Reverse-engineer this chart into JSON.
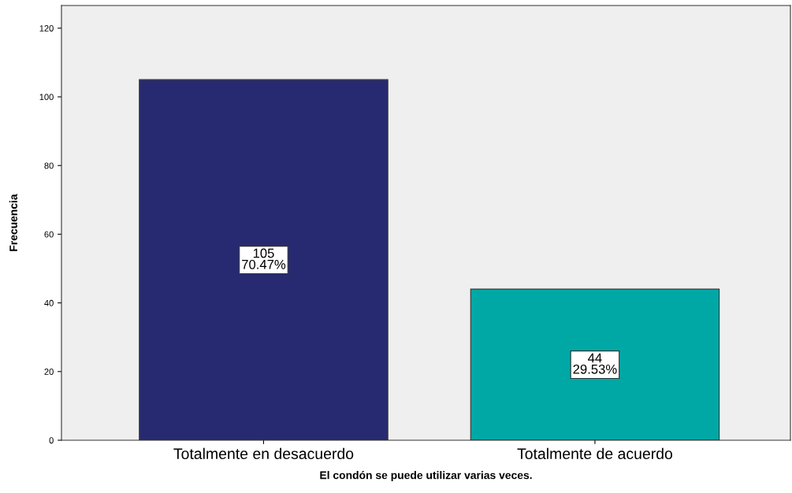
{
  "chart_data": {
    "type": "bar",
    "xlabel": "El condón se puede utilizar varias veces.",
    "ylabel": "Frecuencia",
    "categories": [
      "Totalmente en desacuerdo",
      "Totalmente de acuerdo"
    ],
    "values": [
      105,
      44
    ],
    "colors": [
      "#272a70",
      "#00a8a5"
    ],
    "value_labels": [
      "105\n70.47%",
      "44\n29.53%"
    ],
    "ylim": [
      0,
      126.6
    ],
    "yticks": [
      0,
      20,
      40,
      60,
      80,
      100,
      120
    ],
    "grid": false,
    "legend": false
  }
}
